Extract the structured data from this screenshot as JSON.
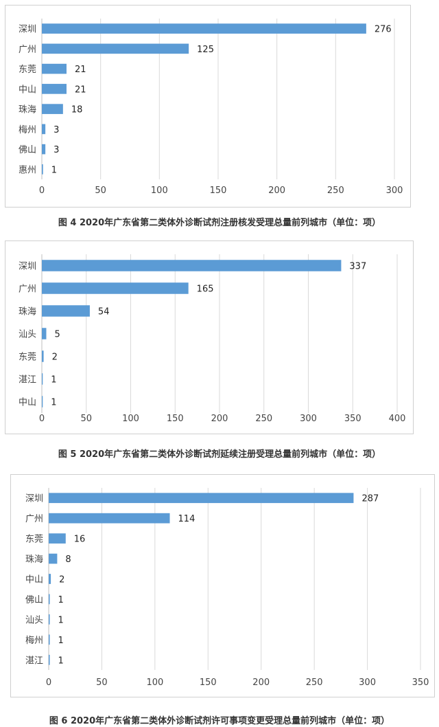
{
  "colors": {
    "bar": "#5b9bd5"
  },
  "chart_data": [
    {
      "type": "bar",
      "orientation": "horizontal",
      "categories": [
        "深圳",
        "广州",
        "东莞",
        "中山",
        "珠海",
        "梅州",
        "佛山",
        "惠州"
      ],
      "values": [
        276,
        125,
        21,
        21,
        18,
        3,
        3,
        1
      ],
      "xlim": [
        0,
        300
      ],
      "ticks": [
        0,
        50,
        100,
        150,
        200,
        250,
        300
      ],
      "data_labels": true,
      "grid": true,
      "caption": "图 4  2020年广东省第二类体外诊断试剂注册核发受理总量前列城市（单位：项）"
    },
    {
      "type": "bar",
      "orientation": "horizontal",
      "categories": [
        "深圳",
        "广州",
        "珠海",
        "汕头",
        "东莞",
        "湛江",
        "中山"
      ],
      "values": [
        337,
        165,
        54,
        5,
        2,
        1,
        1
      ],
      "xlim": [
        0,
        400
      ],
      "ticks": [
        0,
        50,
        100,
        150,
        200,
        250,
        300,
        350,
        400
      ],
      "data_labels": true,
      "grid": true,
      "caption": "图 5  2020年广东省第二类体外诊断试剂延续注册受理总量前列城市（单位：项）"
    },
    {
      "type": "bar",
      "orientation": "horizontal",
      "categories": [
        "深圳",
        "广州",
        "东莞",
        "珠海",
        "中山",
        "佛山",
        "汕头",
        "梅州",
        "湛江"
      ],
      "values": [
        287,
        114,
        16,
        8,
        2,
        1,
        1,
        1,
        1
      ],
      "xlim": [
        0,
        350
      ],
      "ticks": [
        0,
        50,
        100,
        150,
        200,
        250,
        300,
        350
      ],
      "data_labels": true,
      "grid": true,
      "caption": "图 6  2020年广东省第二类体外诊断试剂许可事项变更受理总量前列城市（单位：项）"
    }
  ]
}
